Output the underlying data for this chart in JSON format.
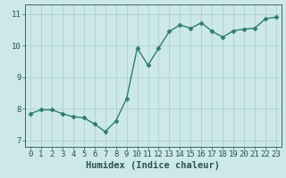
{
  "x": [
    0,
    1,
    2,
    3,
    4,
    5,
    6,
    7,
    8,
    9,
    10,
    11,
    12,
    13,
    14,
    15,
    16,
    17,
    18,
    19,
    20,
    21,
    22,
    23
  ],
  "y": [
    7.85,
    7.97,
    7.97,
    7.85,
    7.75,
    7.72,
    7.52,
    7.28,
    7.62,
    8.32,
    9.92,
    9.38,
    9.92,
    10.45,
    10.65,
    10.55,
    10.72,
    10.45,
    10.27,
    10.47,
    10.52,
    10.55,
    10.85,
    10.9
  ],
  "line_color": "#2e7d6e",
  "marker": "D",
  "marker_size": 2.5,
  "bg_color": "#cce8e8",
  "grid_color": "#aacccc",
  "xlabel": "Humidex (Indice chaleur)",
  "xlabel_color": "#2e5050",
  "tick_color": "#2e5050",
  "xlim": [
    -0.5,
    23.5
  ],
  "ylim": [
    6.8,
    11.3
  ],
  "yticks": [
    7,
    8,
    9,
    10,
    11
  ],
  "xticks": [
    0,
    1,
    2,
    3,
    4,
    5,
    6,
    7,
    8,
    9,
    10,
    11,
    12,
    13,
    14,
    15,
    16,
    17,
    18,
    19,
    20,
    21,
    22,
    23
  ],
  "xlabel_fontsize": 7.5,
  "tick_fontsize": 6.5,
  "line_width": 1.0
}
